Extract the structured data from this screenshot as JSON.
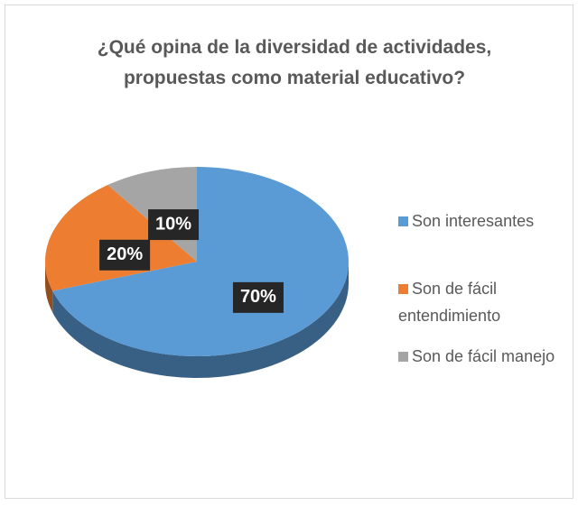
{
  "chart_data": {
    "type": "pie",
    "title": "¿Qué opina de la diversidad  de actividades, propuestas como material educativo?",
    "categories": [
      "Son interesantes",
      "Son de fácil entendimiento",
      "Son de fácil manejo"
    ],
    "values": [
      70,
      20,
      10
    ],
    "value_labels": [
      "70%",
      "20%",
      "10%"
    ],
    "colors": [
      "#5b9bd5",
      "#ed7d31",
      "#a5a5a5"
    ],
    "legend": "right"
  }
}
